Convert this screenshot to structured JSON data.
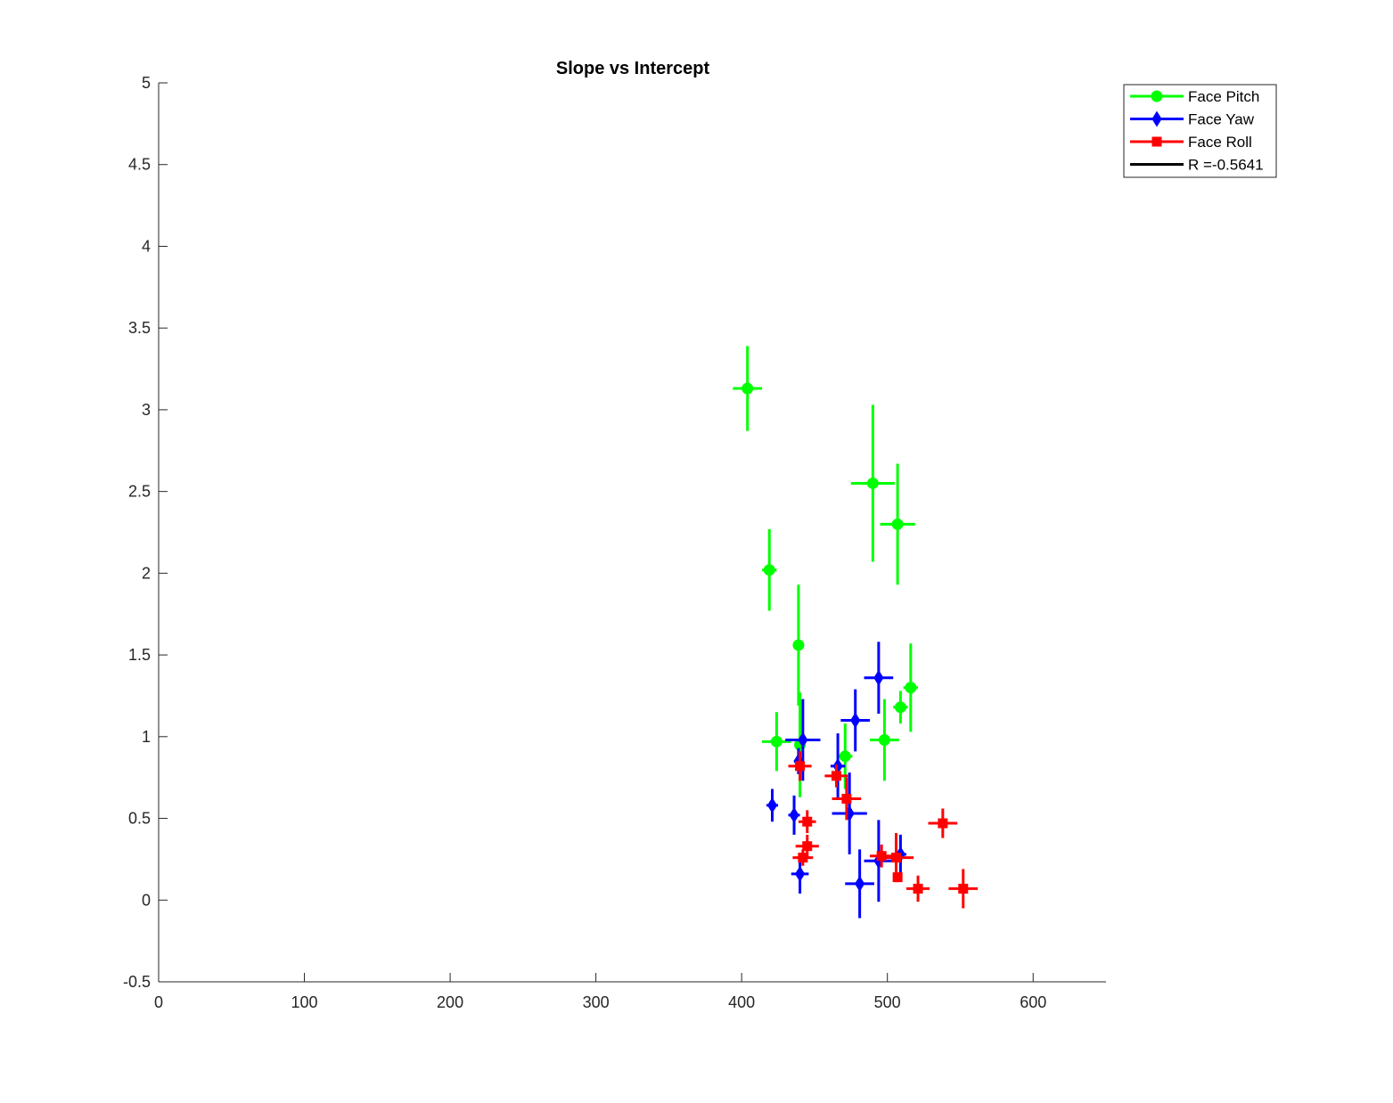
{
  "chart_data": {
    "type": "scatter",
    "title": "Slope vs Intercept",
    "xlabel": "",
    "ylabel": "",
    "xlim": [
      0,
      650
    ],
    "ylim": [
      -0.5,
      5
    ],
    "x_ticks": [
      0,
      100,
      200,
      300,
      400,
      500,
      600
    ],
    "y_ticks": [
      -0.5,
      0,
      0.5,
      1,
      1.5,
      2,
      2.5,
      3,
      3.5,
      4,
      4.5,
      5
    ],
    "x_tick_labels": [
      "0",
      "100",
      "200",
      "300",
      "400",
      "500",
      "600"
    ],
    "y_tick_labels": [
      "-0.5",
      "0",
      "0.5",
      "1",
      "1.5",
      "2",
      "2.5",
      "3",
      "3.5",
      "4",
      "4.5",
      "5"
    ],
    "grid": false,
    "legend_position": "top-right",
    "legend": [
      "Face Pitch",
      "Face Yaw",
      "Face Roll",
      "R =-0.5641"
    ],
    "series": [
      {
        "name": "Face Pitch",
        "color": "#00ff00",
        "marker": "circle",
        "points": [
          {
            "x": 404,
            "y": 3.13,
            "xerr": 10,
            "yerr": 0.26
          },
          {
            "x": 419,
            "y": 2.02,
            "xerr": 5,
            "yerr": 0.25
          },
          {
            "x": 439,
            "y": 1.56,
            "xerr": 2,
            "yerr": 0.37
          },
          {
            "x": 490,
            "y": 2.55,
            "xerr": 15,
            "yerr": 0.48
          },
          {
            "x": 507,
            "y": 2.3,
            "xerr": 12,
            "yerr": 0.37
          },
          {
            "x": 424,
            "y": 0.97,
            "xerr": 10,
            "yerr": 0.18
          },
          {
            "x": 440,
            "y": 0.95,
            "xerr": 2,
            "yerr": 0.32
          },
          {
            "x": 471,
            "y": 0.88,
            "xerr": 5,
            "yerr": 0.2
          },
          {
            "x": 498,
            "y": 0.98,
            "xerr": 10,
            "yerr": 0.25
          },
          {
            "x": 509,
            "y": 1.18,
            "xerr": 5,
            "yerr": 0.1
          },
          {
            "x": 516,
            "y": 1.3,
            "xerr": 5,
            "yerr": 0.27
          }
        ]
      },
      {
        "name": "Face Yaw",
        "color": "#0000ff",
        "marker": "diamond",
        "points": [
          {
            "x": 421,
            "y": 0.58,
            "xerr": 4,
            "yerr": 0.1
          },
          {
            "x": 436,
            "y": 0.52,
            "xerr": 4,
            "yerr": 0.12
          },
          {
            "x": 439,
            "y": 0.85,
            "xerr": 3,
            "yerr": 0.08
          },
          {
            "x": 442,
            "y": 0.98,
            "xerr": 12,
            "yerr": 0.25
          },
          {
            "x": 440,
            "y": 0.16,
            "xerr": 6,
            "yerr": 0.12
          },
          {
            "x": 466,
            "y": 0.82,
            "xerr": 5,
            "yerr": 0.2
          },
          {
            "x": 474,
            "y": 0.53,
            "xerr": 12,
            "yerr": 0.25
          },
          {
            "x": 478,
            "y": 1.1,
            "xerr": 10,
            "yerr": 0.19
          },
          {
            "x": 494,
            "y": 1.36,
            "xerr": 10,
            "yerr": 0.22
          },
          {
            "x": 481,
            "y": 0.1,
            "xerr": 10,
            "yerr": 0.21
          },
          {
            "x": 494,
            "y": 0.24,
            "xerr": 10,
            "yerr": 0.25
          },
          {
            "x": 509,
            "y": 0.28,
            "xerr": 4,
            "yerr": 0.12
          }
        ]
      },
      {
        "name": "Face Roll",
        "color": "#ff0000",
        "marker": "square",
        "points": [
          {
            "x": 440,
            "y": 0.82,
            "xerr": 8,
            "yerr": 0.09
          },
          {
            "x": 445,
            "y": 0.48,
            "xerr": 6,
            "yerr": 0.07
          },
          {
            "x": 445,
            "y": 0.33,
            "xerr": 8,
            "yerr": 0.07
          },
          {
            "x": 442,
            "y": 0.26,
            "xerr": 7,
            "yerr": 0.05
          },
          {
            "x": 465,
            "y": 0.76,
            "xerr": 8,
            "yerr": 0.07
          },
          {
            "x": 472,
            "y": 0.62,
            "xerr": 10,
            "yerr": 0.13
          },
          {
            "x": 496,
            "y": 0.27,
            "xerr": 8,
            "yerr": 0.07
          },
          {
            "x": 506,
            "y": 0.26,
            "xerr": 12,
            "yerr": 0.15
          },
          {
            "x": 507,
            "y": 0.14,
            "xerr": 2,
            "yerr": 0.03
          },
          {
            "x": 521,
            "y": 0.07,
            "xerr": 8,
            "yerr": 0.08
          },
          {
            "x": 538,
            "y": 0.47,
            "xerr": 10,
            "yerr": 0.09
          },
          {
            "x": 552,
            "y": 0.07,
            "xerr": 10,
            "yerr": 0.12
          }
        ]
      }
    ],
    "r_line": {
      "name": "R =-0.5641",
      "color": "#000000"
    }
  }
}
